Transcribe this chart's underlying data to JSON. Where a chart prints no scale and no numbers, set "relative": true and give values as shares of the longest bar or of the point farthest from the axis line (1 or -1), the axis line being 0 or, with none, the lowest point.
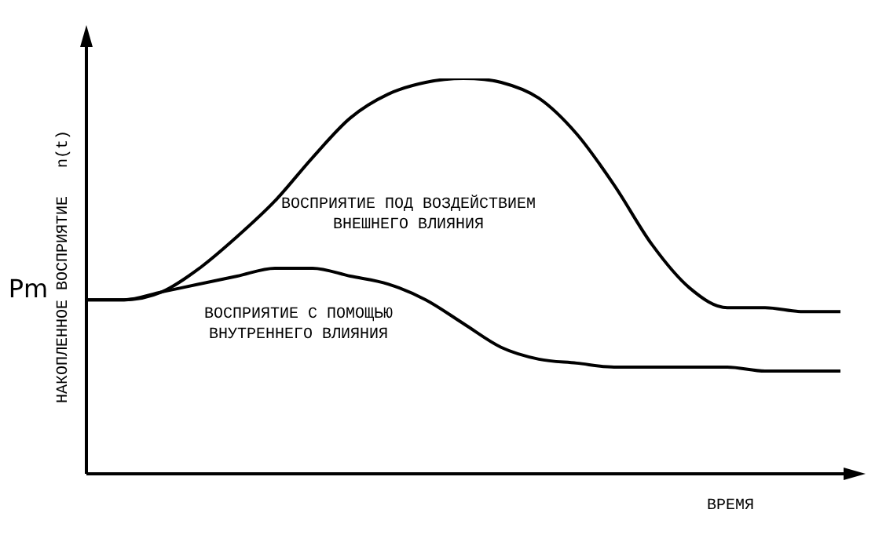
{
  "chart_data": {
    "type": "line",
    "relative": true,
    "xlabel": "ВРЕМЯ",
    "ylabel": "НАКОПЛЕННОЕ ВОСПРИЯТИЕ   n(t)",
    "categories": [
      null,
      null,
      null,
      null,
      null,
      null,
      null,
      null,
      null,
      null,
      null,
      null,
      null,
      null,
      null,
      null,
      null,
      null,
      null,
      null,
      null
    ],
    "series": [
      {
        "color": "#000000",
        "values": [
          0.44,
          0.44,
          0.46,
          0.52,
          0.6,
          0.69,
          0.8,
          0.9,
          0.96,
          0.99,
          1,
          0.99,
          0.95,
          0.86,
          0.73,
          0.58,
          0.47,
          0.42,
          0.42,
          0.41,
          0.41
        ]
      },
      {
        "color": "#000000",
        "values": [
          0.44,
          0.44,
          0.46,
          0.48,
          0.5,
          0.52,
          0.52,
          0.5,
          0.48,
          0.44,
          0.38,
          0.32,
          0.29,
          0.28,
          0.27,
          0.27,
          0.27,
          0.27,
          0.26,
          0.26,
          0.26
        ]
      }
    ],
    "annotations": [
      "ВОСПРИЯТИЕ ПОД ВОЗДЕЙСТВИЕМ ВНЕШНЕГО ВЛИЯНИЯ",
      "ВОСПРИЯТИЕ С ПОМОЩЬЮ ВНУТРЕННЕГО ВЛИЯНИЯ",
      "Pm"
    ],
    "marker": "none",
    "line_style": "solid",
    "legend": false
  }
}
